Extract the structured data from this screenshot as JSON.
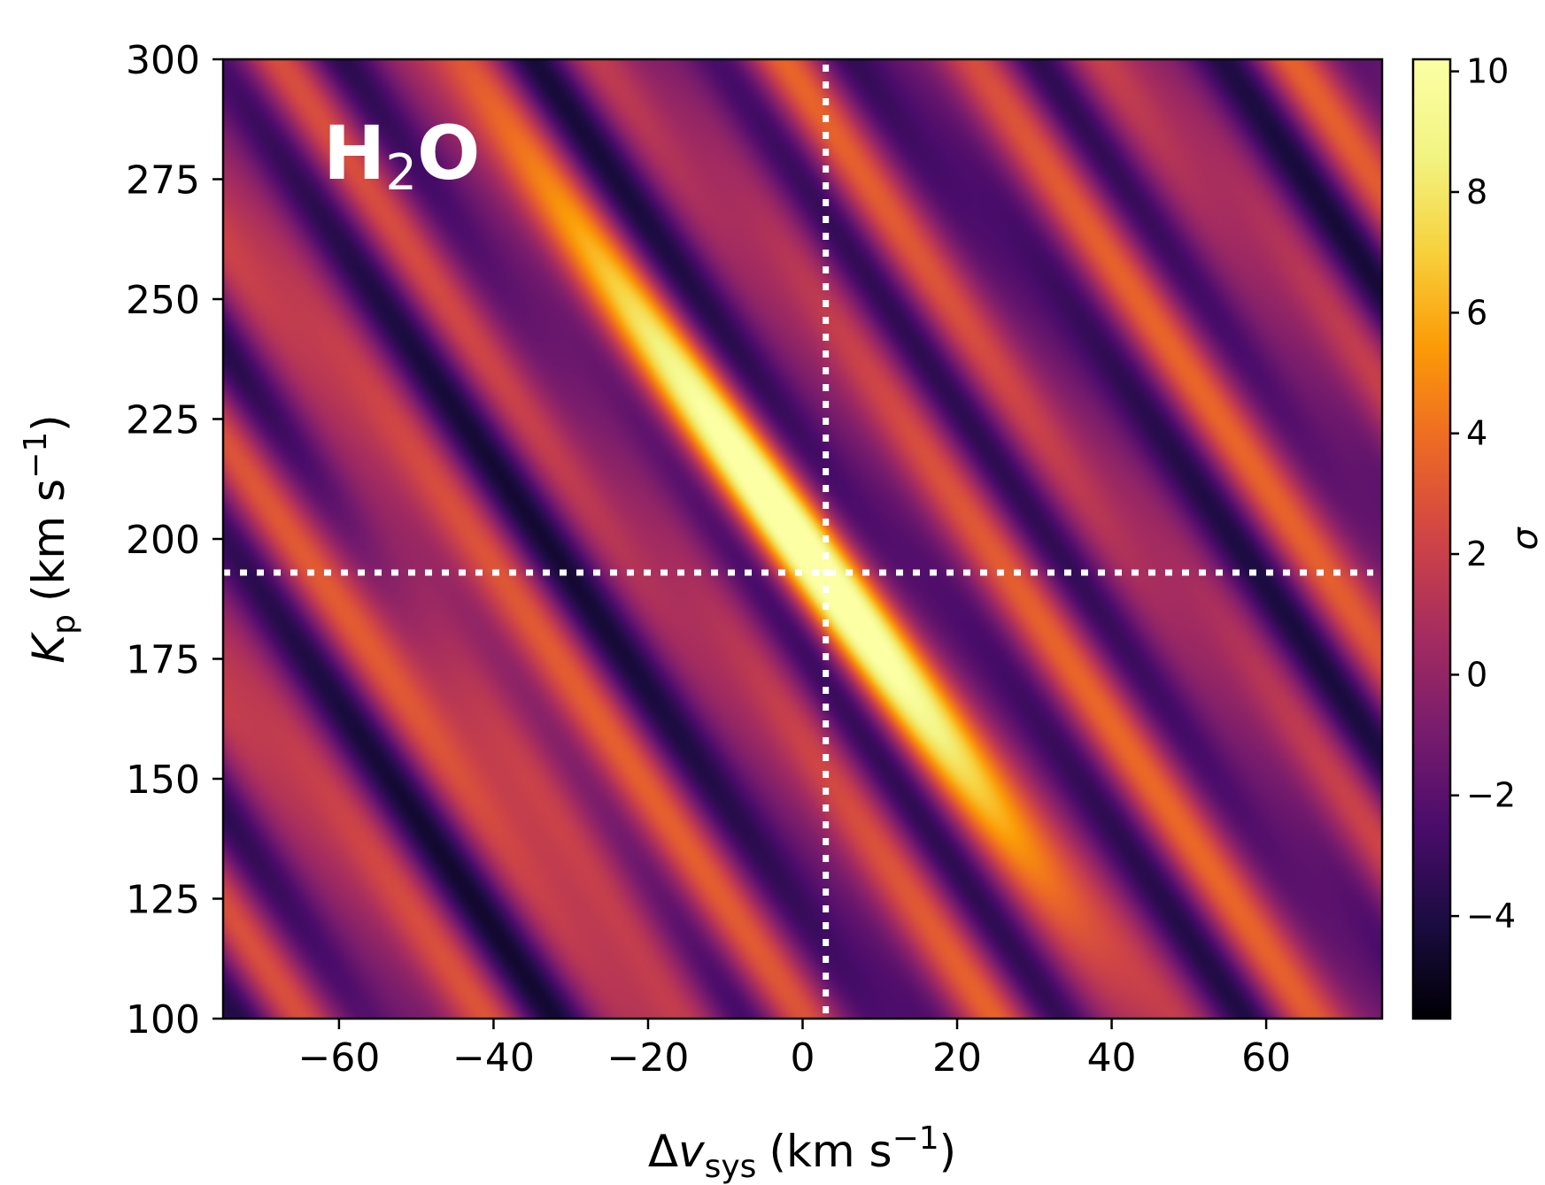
{
  "chart_data": {
    "type": "heatmap",
    "title": "",
    "annotation": {
      "main": "H",
      "sub": "2",
      "tail": "O"
    },
    "xlabel": {
      "prefix": "Δ",
      "var": "v",
      "sub": "sys",
      "units": "(km s",
      "sup": "−1",
      "close": ")"
    },
    "ylabel": {
      "var": "K",
      "sub": "p",
      "units": "(km s",
      "sup": "−1",
      "close": ")"
    },
    "xlim": [
      -75,
      75
    ],
    "ylim": [
      100,
      300
    ],
    "xticks": [
      -60,
      -40,
      -20,
      0,
      20,
      40,
      60
    ],
    "xtick_labels": [
      "−60",
      "−40",
      "−20",
      "0",
      "20",
      "40",
      "60"
    ],
    "yticks": [
      100,
      125,
      150,
      175,
      200,
      225,
      250,
      275,
      300
    ],
    "ytick_labels": [
      "100",
      "125",
      "150",
      "175",
      "200",
      "225",
      "250",
      "275",
      "300"
    ],
    "colorbar": {
      "label": "σ",
      "colormap": "inferno",
      "range": [
        -5.7,
        10.2
      ],
      "ticks": [
        -4,
        -2,
        0,
        2,
        4,
        6,
        8,
        10
      ],
      "tick_labels": [
        "−4",
        "−2",
        "0",
        "2",
        "4",
        "6",
        "8",
        "10"
      ]
    },
    "peak": {
      "dv_sys": 3,
      "kp": 193,
      "sigma": 10
    },
    "crosshair": {
      "vertical_x": 3,
      "horizontal_y": 193,
      "color": "#ffffff"
    }
  }
}
